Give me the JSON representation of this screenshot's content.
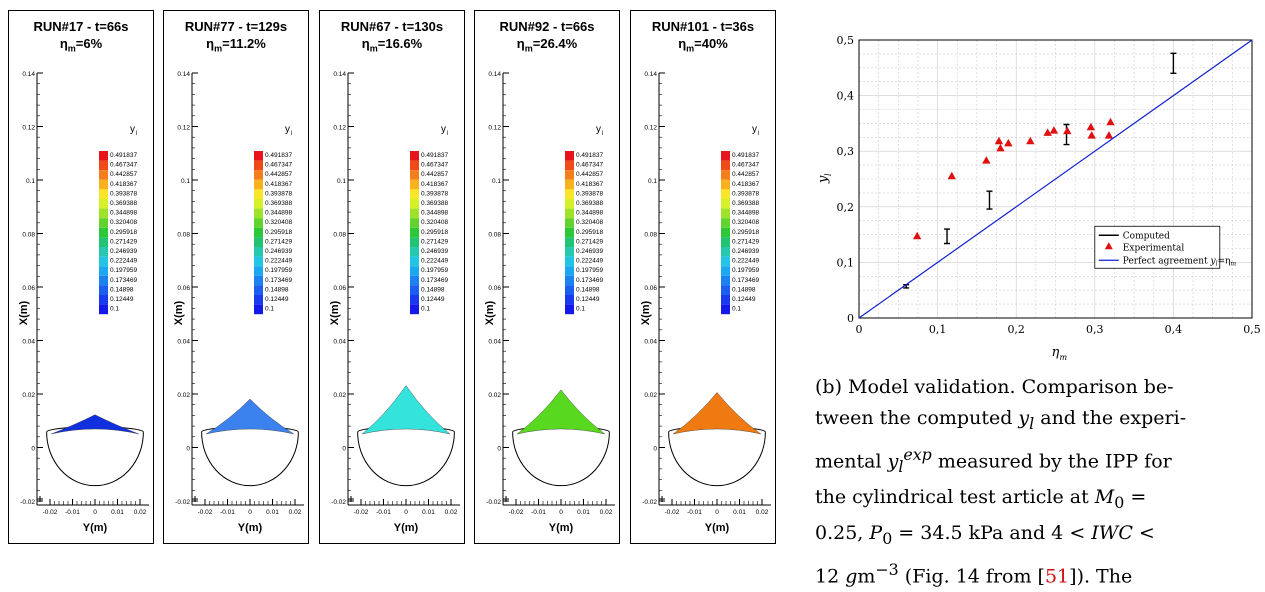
{
  "panels": [
    {
      "title": "RUN#17 - t=66s",
      "eta_label": "η",
      "eta_sub": "m",
      "eta_value": "=6%",
      "color": "#1030e0",
      "peak_y": 0.006
    },
    {
      "title": "RUN#77 - t=129s",
      "eta_label": "η",
      "eta_sub": "m",
      "eta_value": "=11.2%",
      "color": "#3c82ee",
      "peak_y": 0.0122
    },
    {
      "title": "RUN#67 - t=130s",
      "eta_label": "η",
      "eta_sub": "m",
      "eta_value": "=16.6%",
      "color": "#34e4dc",
      "peak_y": 0.0175
    },
    {
      "title": "RUN#92 - t=66s",
      "eta_label": "η",
      "eta_sub": "m",
      "eta_value": "=26.4%",
      "color": "#58d81e",
      "peak_y": 0.0158
    },
    {
      "title": "RUN#101 - t=36s",
      "eta_label": "η",
      "eta_sub": "m",
      "eta_value": "=40%",
      "color": "#f07a12",
      "peak_y": 0.0148
    }
  ],
  "contour": {
    "legend_title": "y",
    "legend_sub": "l",
    "levels": [
      "0.491837",
      "0.467347",
      "0.442857",
      "0.418367",
      "0.393878",
      "0.369388",
      "0.344898",
      "0.320408",
      "0.295918",
      "0.271429",
      "0.246939",
      "0.222449",
      "0.197959",
      "0.173469",
      "0.14898",
      "0.12449",
      "0.1"
    ],
    "y_ticks": [
      "0.14",
      "0.12",
      "0.1",
      "0.08",
      "0.06",
      "0.04",
      "0.02",
      "0",
      "-0.02"
    ],
    "x_ticks": [
      "-0.02",
      "-0.01",
      "0",
      "0.01",
      "0.02"
    ],
    "xlabel": "Y(m)",
    "ylabel": "X(m)"
  },
  "chart_data": {
    "type": "scatter",
    "xlabel": "η",
    "xlabel_sub": "m",
    "ylabel": "y",
    "ylabel_sub": "l",
    "xlim": [
      0,
      0.5
    ],
    "ylim": [
      0,
      0.5
    ],
    "x_ticks": [
      "0",
      "0,1",
      "0,2",
      "0,3",
      "0,4",
      "0,5"
    ],
    "y_ticks": [
      "0",
      "0,1",
      "0,2",
      "0,3",
      "0,4",
      "0,5"
    ],
    "grid": true,
    "legend_position": "bottom-right",
    "series": [
      {
        "name": "Computed",
        "kind": "errorbar",
        "color": "#000000",
        "points": [
          {
            "x": 0.06,
            "low": 0.054,
            "high": 0.06
          },
          {
            "x": 0.112,
            "low": 0.134,
            "high": 0.16
          },
          {
            "x": 0.166,
            "low": 0.196,
            "high": 0.228
          },
          {
            "x": 0.264,
            "low": 0.312,
            "high": 0.348
          },
          {
            "x": 0.4,
            "low": 0.44,
            "high": 0.476
          }
        ]
      },
      {
        "name": "Experimental",
        "kind": "marker",
        "color": "#e01010",
        "points": [
          {
            "x": 0.074,
            "y": 0.147
          },
          {
            "x": 0.118,
            "y": 0.255
          },
          {
            "x": 0.162,
            "y": 0.283
          },
          {
            "x": 0.178,
            "y": 0.318
          },
          {
            "x": 0.18,
            "y": 0.305
          },
          {
            "x": 0.19,
            "y": 0.314
          },
          {
            "x": 0.218,
            "y": 0.318
          },
          {
            "x": 0.24,
            "y": 0.333
          },
          {
            "x": 0.248,
            "y": 0.337
          },
          {
            "x": 0.265,
            "y": 0.336
          },
          {
            "x": 0.295,
            "y": 0.343
          },
          {
            "x": 0.296,
            "y": 0.328
          },
          {
            "x": 0.318,
            "y": 0.328
          },
          {
            "x": 0.32,
            "y": 0.352
          }
        ]
      },
      {
        "name": "Perfect agreement",
        "name_math": "y",
        "name_sub": "l",
        "name_eq": "=η",
        "name_eq_sub": "m",
        "kind": "line",
        "color": "#1020d0",
        "points": [
          {
            "x": 0,
            "y": 0
          },
          {
            "x": 0.5,
            "y": 0.5
          }
        ]
      }
    ]
  },
  "caption": {
    "p1": "(b) Model validation. Comparison be-",
    "p2a": "tween the computed ",
    "p2b": " and the experi-",
    "p3a": "mental ",
    "p3b": " measured by the IPP for",
    "p4a": "the cylindrical test article at ",
    "p4b": " =",
    "p5a": "0.25, ",
    "p5b": " = 34.5 kPa and 4 < ",
    "p5c": " <",
    "p6a": "12 ",
    "p6b": "m",
    "p6c": "−3",
    "p6d": " (Fig. 14 from [",
    "p6e": "51",
    "p6f": "]). The",
    "y": "y",
    "l": "l",
    "exp": "exp",
    "M": "M",
    "zero": "0",
    "P": "P",
    "IWC": "IWC",
    "g": "g"
  }
}
